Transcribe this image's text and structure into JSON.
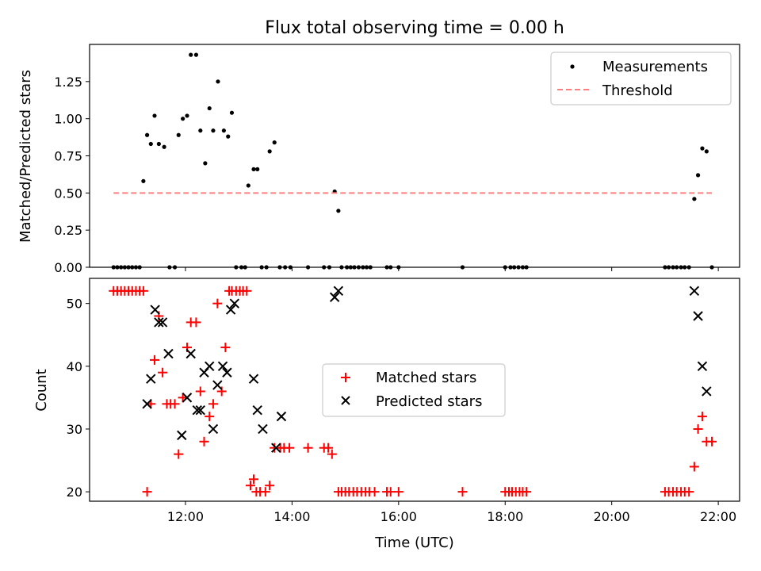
{
  "figure_title": "Flux total observing time = 0.00 h",
  "chart_data": [
    {
      "type": "scatter",
      "title": "Flux total observing time = 0.00 h",
      "xlabel": "",
      "ylabel": "Matched/Predicted stars",
      "xlim": [
        10.2,
        22.4
      ],
      "ylim": [
        0,
        1.5
      ],
      "yticks": [
        0.0,
        0.25,
        0.5,
        0.75,
        1.0,
        1.25
      ],
      "ytick_labels": [
        "0.00",
        "0.25",
        "0.50",
        "0.75",
        "1.00",
        "1.25"
      ],
      "xticks": [
        12,
        14,
        16,
        18,
        20,
        22
      ],
      "legend_position": "top-right",
      "series": [
        {
          "name": "Measurements",
          "marker": "dot",
          "color": "#000000",
          "x": [
            10.65,
            10.72,
            10.79,
            10.86,
            10.93,
            11.0,
            11.07,
            11.14,
            11.21,
            11.28,
            11.35,
            11.42,
            11.5,
            11.6,
            11.7,
            11.8,
            11.87,
            11.95,
            12.03,
            12.1,
            12.2,
            12.28,
            12.37,
            12.45,
            12.52,
            12.61,
            12.72,
            12.8,
            12.87,
            12.95,
            13.05,
            13.12,
            13.18,
            13.28,
            13.35,
            13.43,
            13.52,
            13.58,
            13.67,
            13.77,
            13.87,
            13.97,
            14.3,
            14.6,
            14.7,
            14.8,
            14.87,
            14.93,
            15.03,
            15.1,
            15.17,
            15.25,
            15.33,
            15.4,
            15.47,
            15.78,
            15.85,
            16.0,
            17.2,
            18.0,
            18.1,
            18.17,
            18.25,
            18.33,
            18.4,
            21.0,
            21.07,
            21.15,
            21.22,
            21.3,
            21.37,
            21.45,
            21.55,
            21.62,
            21.7,
            21.78,
            21.88
          ],
          "y": [
            0,
            0,
            0,
            0,
            0,
            0,
            0,
            0,
            0.58,
            0.89,
            0.83,
            1.02,
            0.83,
            0.81,
            0,
            0,
            0.89,
            1.0,
            1.02,
            1.43,
            1.43,
            0.92,
            0.7,
            1.07,
            0.92,
            1.25,
            0.92,
            0.88,
            1.04,
            0,
            0,
            0,
            0.55,
            0.66,
            0.66,
            0,
            0,
            0.78,
            0.84,
            0,
            0,
            0,
            0,
            0,
            0,
            0.51,
            0.38,
            0,
            0,
            0,
            0,
            0,
            0,
            0,
            0,
            0,
            0,
            0,
            0,
            0,
            0,
            0,
            0,
            0,
            0,
            0,
            0,
            0,
            0,
            0,
            0,
            0,
            0.46,
            0.62,
            0.8,
            0.78,
            0
          ]
        },
        {
          "name": "Threshold",
          "marker": "dashed-line",
          "color": "#ff7f7f",
          "x": [
            10.65,
            21.88
          ],
          "y": [
            0.5,
            0.5
          ]
        }
      ]
    },
    {
      "type": "scatter",
      "title": "",
      "xlabel": "Time (UTC)",
      "ylabel": "Count",
      "xlim": [
        10.2,
        22.4
      ],
      "ylim": [
        18.5,
        54
      ],
      "yticks": [
        20,
        30,
        40,
        50
      ],
      "ytick_labels": [
        "20",
        "30",
        "40",
        "50"
      ],
      "xticks": [
        12,
        14,
        16,
        18,
        20,
        22
      ],
      "xtick_labels": [
        "12:00",
        "14:00",
        "16:00",
        "18:00",
        "20:00",
        "22:00"
      ],
      "legend_position": "center",
      "series": [
        {
          "name": "Matched stars",
          "marker": "plus",
          "color": "#ff0000",
          "x": [
            10.65,
            10.72,
            10.79,
            10.86,
            10.93,
            11.0,
            11.07,
            11.14,
            11.21,
            11.28,
            11.35,
            11.42,
            11.5,
            11.57,
            11.65,
            11.72,
            11.8,
            11.87,
            11.95,
            12.03,
            12.1,
            12.2,
            12.28,
            12.35,
            12.45,
            12.52,
            12.6,
            12.68,
            12.75,
            12.82,
            12.87,
            12.95,
            13.02,
            13.08,
            13.15,
            13.22,
            13.28,
            13.33,
            13.4,
            13.5,
            13.58,
            13.67,
            13.78,
            13.85,
            13.95,
            14.3,
            14.6,
            14.68,
            14.75,
            14.87,
            14.93,
            15.0,
            15.07,
            15.15,
            15.22,
            15.3,
            15.38,
            15.45,
            15.55,
            15.78,
            15.85,
            16.0,
            17.2,
            18.0,
            18.07,
            18.13,
            18.2,
            18.27,
            18.33,
            18.4,
            21.0,
            21.07,
            21.15,
            21.22,
            21.3,
            21.37,
            21.45,
            21.55,
            21.62,
            21.7,
            21.78,
            21.88
          ],
          "y": [
            52,
            52,
            52,
            52,
            52,
            52,
            52,
            52,
            52,
            20,
            34,
            41,
            48,
            39,
            34,
            34,
            34,
            26,
            35,
            43,
            47,
            47,
            36,
            28,
            32,
            34,
            50,
            36,
            43,
            52,
            52,
            52,
            52,
            52,
            52,
            21,
            22,
            20,
            20,
            20,
            21,
            27,
            27,
            27,
            27,
            27,
            27,
            27,
            26,
            20,
            20,
            20,
            20,
            20,
            20,
            20,
            20,
            20,
            20,
            20,
            20,
            20,
            20,
            20,
            20,
            20,
            20,
            20,
            20,
            20,
            20,
            20,
            20,
            20,
            20,
            20,
            20,
            24,
            30,
            32,
            28,
            28
          ]
        },
        {
          "name": "Predicted stars",
          "marker": "x",
          "color": "#000000",
          "x": [
            11.28,
            11.35,
            11.43,
            11.5,
            11.57,
            11.68,
            11.93,
            12.03,
            12.1,
            12.22,
            12.28,
            12.35,
            12.45,
            12.52,
            12.6,
            12.7,
            12.78,
            12.85,
            12.92,
            13.28,
            13.35,
            13.45,
            13.7,
            13.8,
            14.8,
            14.87,
            21.55,
            21.62,
            21.7,
            21.78
          ],
          "y": [
            34,
            38,
            49,
            47,
            47,
            42,
            29,
            35,
            42,
            33,
            33,
            39,
            40,
            30,
            37,
            40,
            39,
            49,
            50,
            38,
            33,
            30,
            27,
            32,
            51,
            52,
            52,
            48,
            40,
            36
          ]
        }
      ]
    }
  ]
}
